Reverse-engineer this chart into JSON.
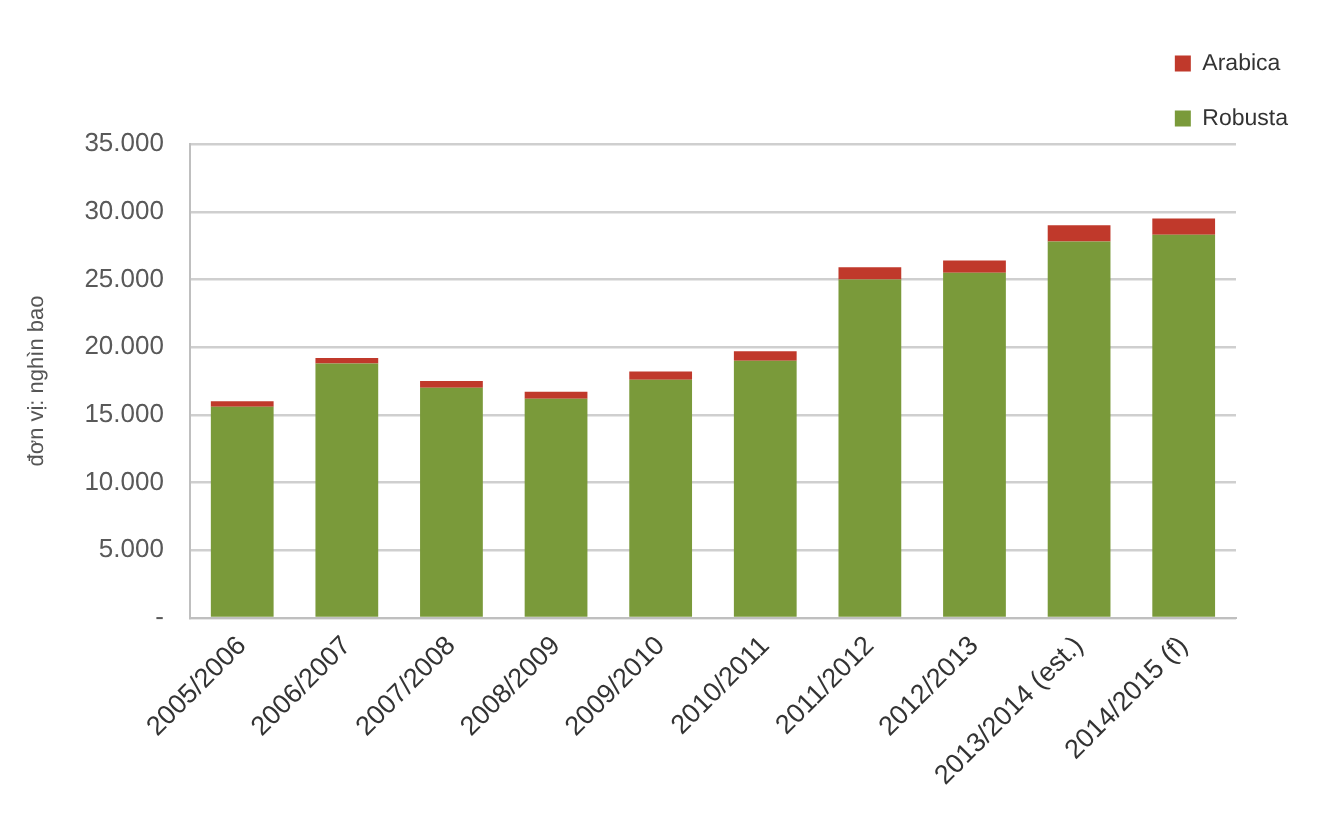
{
  "chart_data": {
    "type": "bar",
    "ylabel": "đơn vị: nghìn bao",
    "categories": [
      "2005/2006",
      "2006/2007",
      "2007/2008",
      "2008/2009",
      "2009/2010",
      "2010/2011",
      "2011/2012",
      "2012/2013",
      "2013/2014 (est.)",
      "2014/2015 (f)"
    ],
    "series": [
      {
        "name": "Robusta",
        "color": "#7a9a3a",
        "values": [
          15600,
          18800,
          17000,
          16200,
          17600,
          19000,
          25000,
          25500,
          27800,
          28300
        ]
      },
      {
        "name": "Arabica",
        "color": "#c0392b",
        "values": [
          400,
          400,
          500,
          500,
          600,
          700,
          900,
          900,
          1200,
          1200
        ]
      }
    ],
    "stacked": true,
    "ylim": [
      0,
      35000
    ],
    "yticks": [
      {
        "value": 0,
        "label": "-"
      },
      {
        "value": 5000,
        "label": "5.000"
      },
      {
        "value": 10000,
        "label": "10.000"
      },
      {
        "value": 15000,
        "label": "15.000"
      },
      {
        "value": 20000,
        "label": "20.000"
      },
      {
        "value": 25000,
        "label": "25.000"
      },
      {
        "value": 30000,
        "label": "30.000"
      },
      {
        "value": 35000,
        "label": "35.000"
      }
    ],
    "grid": "y",
    "legend": "top right"
  }
}
